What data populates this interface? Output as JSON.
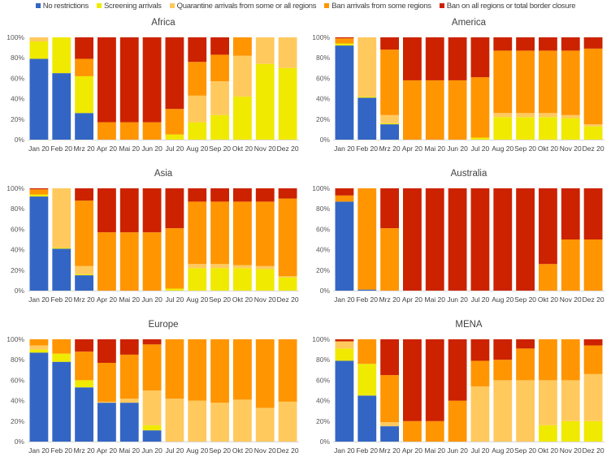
{
  "chart_data": {
    "type": "bar",
    "stacked": true,
    "categories": [
      "Jan 20",
      "Feb 20",
      "Mrz 20",
      "Apr 20",
      "Mai 20",
      "Jun 20",
      "Jul 20",
      "Aug 20",
      "Sep 20",
      "Okt 20",
      "Nov 20",
      "Dez 20"
    ],
    "yticks": [
      "0%",
      "20%",
      "40%",
      "60%",
      "80%",
      "100%"
    ],
    "ylim": [
      0,
      100
    ],
    "legend_position": "top",
    "legend": [
      {
        "name": "No restrictions",
        "color": "#3366c4"
      },
      {
        "name": "Screening arrivals",
        "color": "#f0ea00"
      },
      {
        "name": "Quarantine arrivals from some or all regions",
        "color": "#ffc95e"
      },
      {
        "name": "Ban arrivals from some regions",
        "color": "#ff9500"
      },
      {
        "name": "Ban on all regions or total border closure",
        "color": "#cc2200"
      }
    ],
    "panels": [
      {
        "title": "Africa",
        "values": [
          [
            79,
            17,
            4,
            0,
            0
          ],
          [
            65,
            35,
            0,
            0,
            0
          ],
          [
            26,
            36,
            0,
            17,
            21
          ],
          [
            0,
            0,
            0,
            17,
            83
          ],
          [
            0,
            0,
            0,
            17,
            83
          ],
          [
            0,
            0,
            0,
            17,
            83
          ],
          [
            0,
            5,
            0,
            25,
            70
          ],
          [
            0,
            17,
            26,
            33,
            24
          ],
          [
            0,
            24,
            33,
            26,
            17
          ],
          [
            0,
            42,
            40,
            18,
            0
          ],
          [
            0,
            74,
            26,
            0,
            0
          ],
          [
            0,
            70,
            30,
            0,
            0
          ]
        ]
      },
      {
        "title": "America",
        "values": [
          [
            92,
            2,
            0,
            5,
            1
          ],
          [
            41,
            1,
            58,
            0,
            0
          ],
          [
            15,
            1,
            8,
            64,
            12
          ],
          [
            0,
            0,
            0,
            58,
            42
          ],
          [
            0,
            0,
            0,
            58,
            42
          ],
          [
            0,
            0,
            0,
            58,
            42
          ],
          [
            0,
            2,
            0,
            59,
            39
          ],
          [
            0,
            22,
            4,
            61,
            13
          ],
          [
            0,
            22,
            4,
            61,
            13
          ],
          [
            0,
            22,
            4,
            61,
            13
          ],
          [
            0,
            21,
            3,
            63,
            13
          ],
          [
            0,
            13,
            2,
            74,
            11
          ]
        ]
      },
      {
        "title": "Asia",
        "values": [
          [
            92,
            2,
            0,
            5,
            1
          ],
          [
            41,
            1,
            58,
            0,
            0
          ],
          [
            15,
            1,
            8,
            64,
            12
          ],
          [
            0,
            0,
            0,
            57,
            43
          ],
          [
            0,
            0,
            0,
            57,
            43
          ],
          [
            0,
            0,
            0,
            57,
            43
          ],
          [
            0,
            2,
            0,
            59,
            39
          ],
          [
            0,
            22,
            4,
            61,
            13
          ],
          [
            0,
            22,
            4,
            61,
            13
          ],
          [
            0,
            22,
            3,
            62,
            13
          ],
          [
            0,
            21,
            3,
            63,
            13
          ],
          [
            0,
            13,
            1,
            76,
            10
          ]
        ]
      },
      {
        "title": "Australia",
        "values": [
          [
            87,
            0,
            0,
            6,
            7
          ],
          [
            1,
            0,
            0,
            99,
            0
          ],
          [
            0,
            0,
            0,
            61,
            39
          ],
          [
            0,
            0,
            0,
            0,
            100
          ],
          [
            0,
            0,
            0,
            0,
            100
          ],
          [
            0,
            0,
            0,
            0,
            100
          ],
          [
            0,
            0,
            0,
            0,
            100
          ],
          [
            0,
            0,
            0,
            0,
            100
          ],
          [
            0,
            0,
            0,
            0,
            100
          ],
          [
            0,
            0,
            0,
            26,
            74
          ],
          [
            0,
            0,
            0,
            50,
            50
          ],
          [
            0,
            0,
            0,
            50,
            50
          ]
        ]
      },
      {
        "title": "Europe",
        "values": [
          [
            87,
            3,
            4,
            6,
            0
          ],
          [
            78,
            8,
            0,
            14,
            0
          ],
          [
            53,
            7,
            0,
            28,
            12
          ],
          [
            38,
            0,
            1,
            38,
            23
          ],
          [
            38,
            0,
            4,
            43,
            15
          ],
          [
            11,
            5,
            34,
            45,
            5
          ],
          [
            0,
            0,
            42,
            58,
            0
          ],
          [
            0,
            0,
            40,
            60,
            0
          ],
          [
            0,
            0,
            38,
            62,
            0
          ],
          [
            0,
            0,
            41,
            59,
            0
          ],
          [
            0,
            0,
            33,
            67,
            0
          ],
          [
            0,
            0,
            39,
            61,
            0
          ]
        ]
      },
      {
        "title": "MENA",
        "values": [
          [
            79,
            12,
            7,
            0,
            2
          ],
          [
            45,
            31,
            0,
            24,
            0
          ],
          [
            15,
            0,
            4,
            46,
            35
          ],
          [
            0,
            0,
            0,
            20,
            80
          ],
          [
            0,
            0,
            0,
            20,
            80
          ],
          [
            0,
            0,
            0,
            40,
            60
          ],
          [
            0,
            0,
            54,
            25,
            21
          ],
          [
            0,
            0,
            60,
            20,
            20
          ],
          [
            0,
            0,
            60,
            31,
            9
          ],
          [
            0,
            16,
            44,
            40,
            0
          ],
          [
            0,
            20,
            40,
            40,
            0
          ],
          [
            0,
            20,
            46,
            28,
            6
          ]
        ]
      }
    ]
  }
}
